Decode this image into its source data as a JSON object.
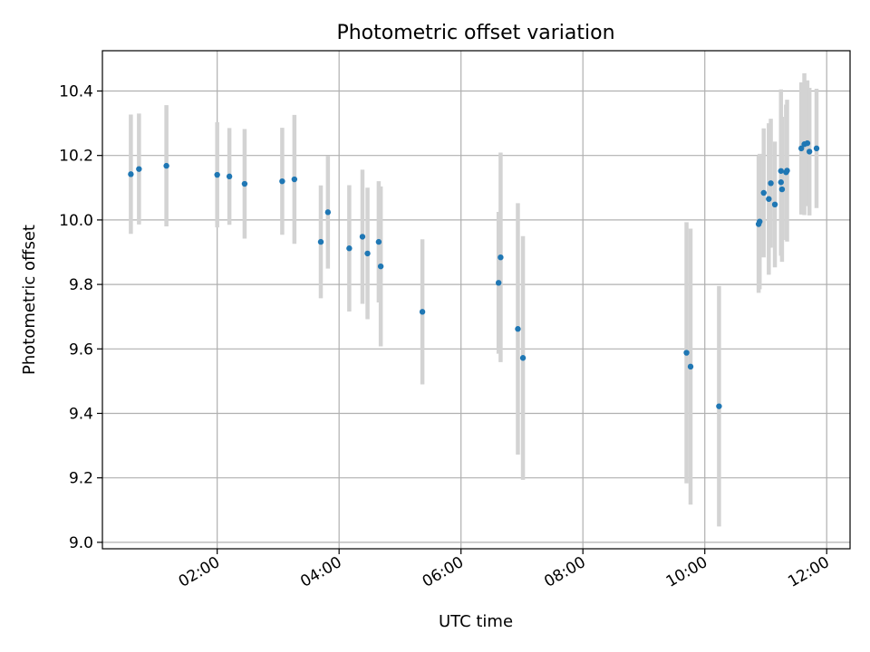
{
  "chart_data": {
    "type": "scatter",
    "title": "Photometric offset variation",
    "xlabel": "UTC time",
    "ylabel": "Photometric offset",
    "x_axis": "time",
    "xlim": [
      "00:07",
      "12:23"
    ],
    "ylim": [
      8.98,
      10.525
    ],
    "xticks": [
      "02:00",
      "04:00",
      "06:00",
      "08:00",
      "10:00",
      "12:00"
    ],
    "yticks": [
      9.0,
      9.2,
      9.4,
      9.6,
      9.8,
      10.0,
      10.2,
      10.4
    ],
    "grid": true,
    "marker_color": "#1f77b4",
    "errorbar_color": "#d3d3d3",
    "points": [
      {
        "t": "00:35",
        "y": 10.142,
        "err": 0.185
      },
      {
        "t": "00:43",
        "y": 10.158,
        "err": 0.172
      },
      {
        "t": "01:10",
        "y": 10.168,
        "err": 0.188
      },
      {
        "t": "02:00",
        "y": 10.14,
        "err": 0.163
      },
      {
        "t": "02:12",
        "y": 10.135,
        "err": 0.15
      },
      {
        "t": "02:27",
        "y": 10.112,
        "err": 0.17
      },
      {
        "t": "03:04",
        "y": 10.12,
        "err": 0.166
      },
      {
        "t": "03:16",
        "y": 10.126,
        "err": 0.2
      },
      {
        "t": "03:42",
        "y": 9.932,
        "err": 0.175
      },
      {
        "t": "03:49",
        "y": 10.024,
        "err": 0.175
      },
      {
        "t": "04:10",
        "y": 9.912,
        "err": 0.196
      },
      {
        "t": "04:23",
        "y": 9.948,
        "err": 0.208
      },
      {
        "t": "04:28",
        "y": 9.896,
        "err": 0.204
      },
      {
        "t": "04:39",
        "y": 9.932,
        "err": 0.188
      },
      {
        "t": "04:41",
        "y": 9.856,
        "err": 0.248
      },
      {
        "t": "05:22",
        "y": 9.715,
        "err": 0.225
      },
      {
        "t": "06:37",
        "y": 9.805,
        "err": 0.22
      },
      {
        "t": "06:39",
        "y": 9.884,
        "err": 0.325
      },
      {
        "t": "06:56",
        "y": 9.662,
        "err": 0.39
      },
      {
        "t": "07:01",
        "y": 9.572,
        "err": 0.378
      },
      {
        "t": "09:42",
        "y": 9.588,
        "err": 0.405
      },
      {
        "t": "09:46",
        "y": 9.545,
        "err": 0.428
      },
      {
        "t": "10:14",
        "y": 9.422,
        "err": 0.373
      },
      {
        "t": "10:53",
        "y": 9.987,
        "err": 0.213
      },
      {
        "t": "10:54",
        "y": 9.995,
        "err": 0.21
      },
      {
        "t": "10:58",
        "y": 10.084,
        "err": 0.2
      },
      {
        "t": "11:03",
        "y": 10.065,
        "err": 0.235
      },
      {
        "t": "11:05",
        "y": 10.114,
        "err": 0.2
      },
      {
        "t": "11:09",
        "y": 10.048,
        "err": 0.195
      },
      {
        "t": "11:15",
        "y": 10.117,
        "err": 0.228
      },
      {
        "t": "11:15",
        "y": 10.152,
        "err": 0.253
      },
      {
        "t": "11:16",
        "y": 10.095,
        "err": 0.225
      },
      {
        "t": "11:20",
        "y": 10.148,
        "err": 0.21
      },
      {
        "t": "11:21",
        "y": 10.153,
        "err": 0.22
      },
      {
        "t": "11:35",
        "y": 10.222,
        "err": 0.205
      },
      {
        "t": "11:38",
        "y": 10.235,
        "err": 0.22
      },
      {
        "t": "11:41",
        "y": 10.238,
        "err": 0.195
      },
      {
        "t": "11:43",
        "y": 10.212,
        "err": 0.198
      },
      {
        "t": "11:50",
        "y": 10.222,
        "err": 0.185
      }
    ]
  }
}
